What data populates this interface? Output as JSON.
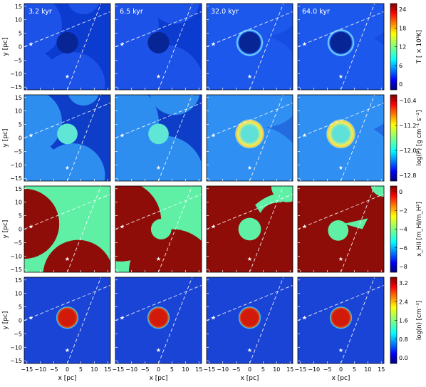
{
  "time_labels": [
    "3.2 kyr",
    "6.5 kyr",
    "32.0 kyr",
    "64.0 kyr"
  ],
  "x_axis_label": "x [pc]",
  "y_axis_label": "y [pc]",
  "x_ticks": [
    "−15",
    "−10",
    "−5",
    "0",
    "5",
    "10",
    "15"
  ],
  "y_ticks": [
    "15",
    "10",
    "5",
    "0",
    "−5",
    "−10",
    "−15"
  ],
  "rows": [
    {
      "quantity": "temperature",
      "colorbar_label": "T [ × 10³K]",
      "colorbar_ticks": [
        "24",
        "18",
        "12",
        "6",
        "0"
      ]
    },
    {
      "quantity": "pressure",
      "colorbar_label": "log(P) [g cm⁻¹ s⁻²]",
      "colorbar_ticks": [
        "−10.4",
        "−11.2",
        "−12.0",
        "−12.8"
      ]
    },
    {
      "quantity": "ionization",
      "colorbar_label": "x_HII [m_HI/m_H²]",
      "colorbar_ticks": [
        "0",
        "−2",
        "−4",
        "−6",
        "−8"
      ]
    },
    {
      "quantity": "density",
      "colorbar_label": "log(n) [cm⁻³]",
      "colorbar_ticks": [
        "3.2",
        "2.4",
        "1.6",
        "0.8",
        "0.0"
      ]
    }
  ],
  "colors": {
    "background_cold": "#0a2fb8",
    "shell_hot": "#d21a0a",
    "ionized_green": "#5ff0a6",
    "neutral_red": "#8e0d08"
  }
}
